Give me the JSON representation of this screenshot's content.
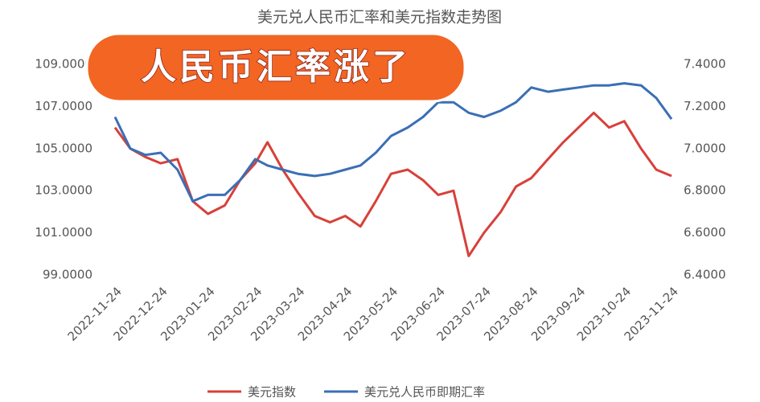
{
  "chart_data": {
    "type": "line",
    "title": "美元兑人民币汇率和美元指数走势图",
    "annotation": "人民币汇率涨了",
    "x": [
      "2022-11-24",
      "2022-12-04",
      "2022-12-14",
      "2022-12-24",
      "2023-01-04",
      "2023-01-14",
      "2023-01-24",
      "2023-02-04",
      "2023-02-14",
      "2023-02-24",
      "2023-03-04",
      "2023-03-14",
      "2023-03-24",
      "2023-04-04",
      "2023-04-14",
      "2023-04-24",
      "2023-05-04",
      "2023-05-14",
      "2023-05-24",
      "2023-06-04",
      "2023-06-14",
      "2023-06-24",
      "2023-07-04",
      "2023-07-14",
      "2023-07-24",
      "2023-08-04",
      "2023-08-14",
      "2023-08-24",
      "2023-09-04",
      "2023-09-14",
      "2023-09-24",
      "2023-10-04",
      "2023-10-14",
      "2023-10-24",
      "2023-11-04",
      "2023-11-14",
      "2023-11-24"
    ],
    "series": [
      {
        "name": "美元指数",
        "color": "#d8403a",
        "values": [
          106.0,
          105.0,
          104.6,
          104.3,
          104.5,
          102.5,
          101.9,
          102.3,
          103.5,
          104.3,
          105.3,
          104.0,
          102.9,
          101.8,
          101.5,
          101.8,
          101.3,
          102.5,
          103.8,
          104.0,
          103.5,
          102.8,
          103.0,
          99.9,
          101.0,
          102.0,
          103.2,
          103.6,
          104.5,
          105.3,
          106.0,
          106.7,
          106.0,
          106.3,
          105.0,
          104.0,
          103.7
        ]
      },
      {
        "name": "美元兑人民币即期汇率",
        "color": "#3a6fb5",
        "axis": "y2",
        "values": [
          7.15,
          7.0,
          6.97,
          6.98,
          6.9,
          6.75,
          6.78,
          6.78,
          6.85,
          6.95,
          6.92,
          6.9,
          6.88,
          6.87,
          6.88,
          6.9,
          6.92,
          6.98,
          7.06,
          7.1,
          7.15,
          7.22,
          7.22,
          7.17,
          7.15,
          7.18,
          7.22,
          7.29,
          7.27,
          7.28,
          7.29,
          7.3,
          7.3,
          7.31,
          7.3,
          7.24,
          7.14
        ]
      }
    ],
    "xlim": [
      "2022-11-24",
      "2023-11-24"
    ],
    "xticks": [
      "2022-11-24",
      "2022-12-24",
      "2023-01-24",
      "2023-02-24",
      "2023-03-24",
      "2023-04-24",
      "2023-05-24",
      "2023-06-24",
      "2023-07-24",
      "2023-08-24",
      "2023-09-24",
      "2023-10-24",
      "2023-11-24"
    ],
    "ylim": [
      99,
      109
    ],
    "yticks": [
      {
        "value": 99,
        "label": "99.0000"
      },
      {
        "value": 101,
        "label": "101.0000"
      },
      {
        "value": 103,
        "label": "103.0000"
      },
      {
        "value": 105,
        "label": "105.0000"
      },
      {
        "value": 107,
        "label": "107.0000"
      },
      {
        "value": 109,
        "label": "109.0000"
      }
    ],
    "y2lim": [
      6.4,
      7.4
    ],
    "y2ticks": [
      {
        "value": 6.4,
        "label": "6.4000"
      },
      {
        "value": 6.6,
        "label": "6.6000"
      },
      {
        "value": 6.8,
        "label": "6.8000"
      },
      {
        "value": 7.0,
        "label": "7.0000"
      },
      {
        "value": 7.2,
        "label": "7.2000"
      },
      {
        "value": 7.4,
        "label": "7.4000"
      }
    ],
    "grid": false
  }
}
